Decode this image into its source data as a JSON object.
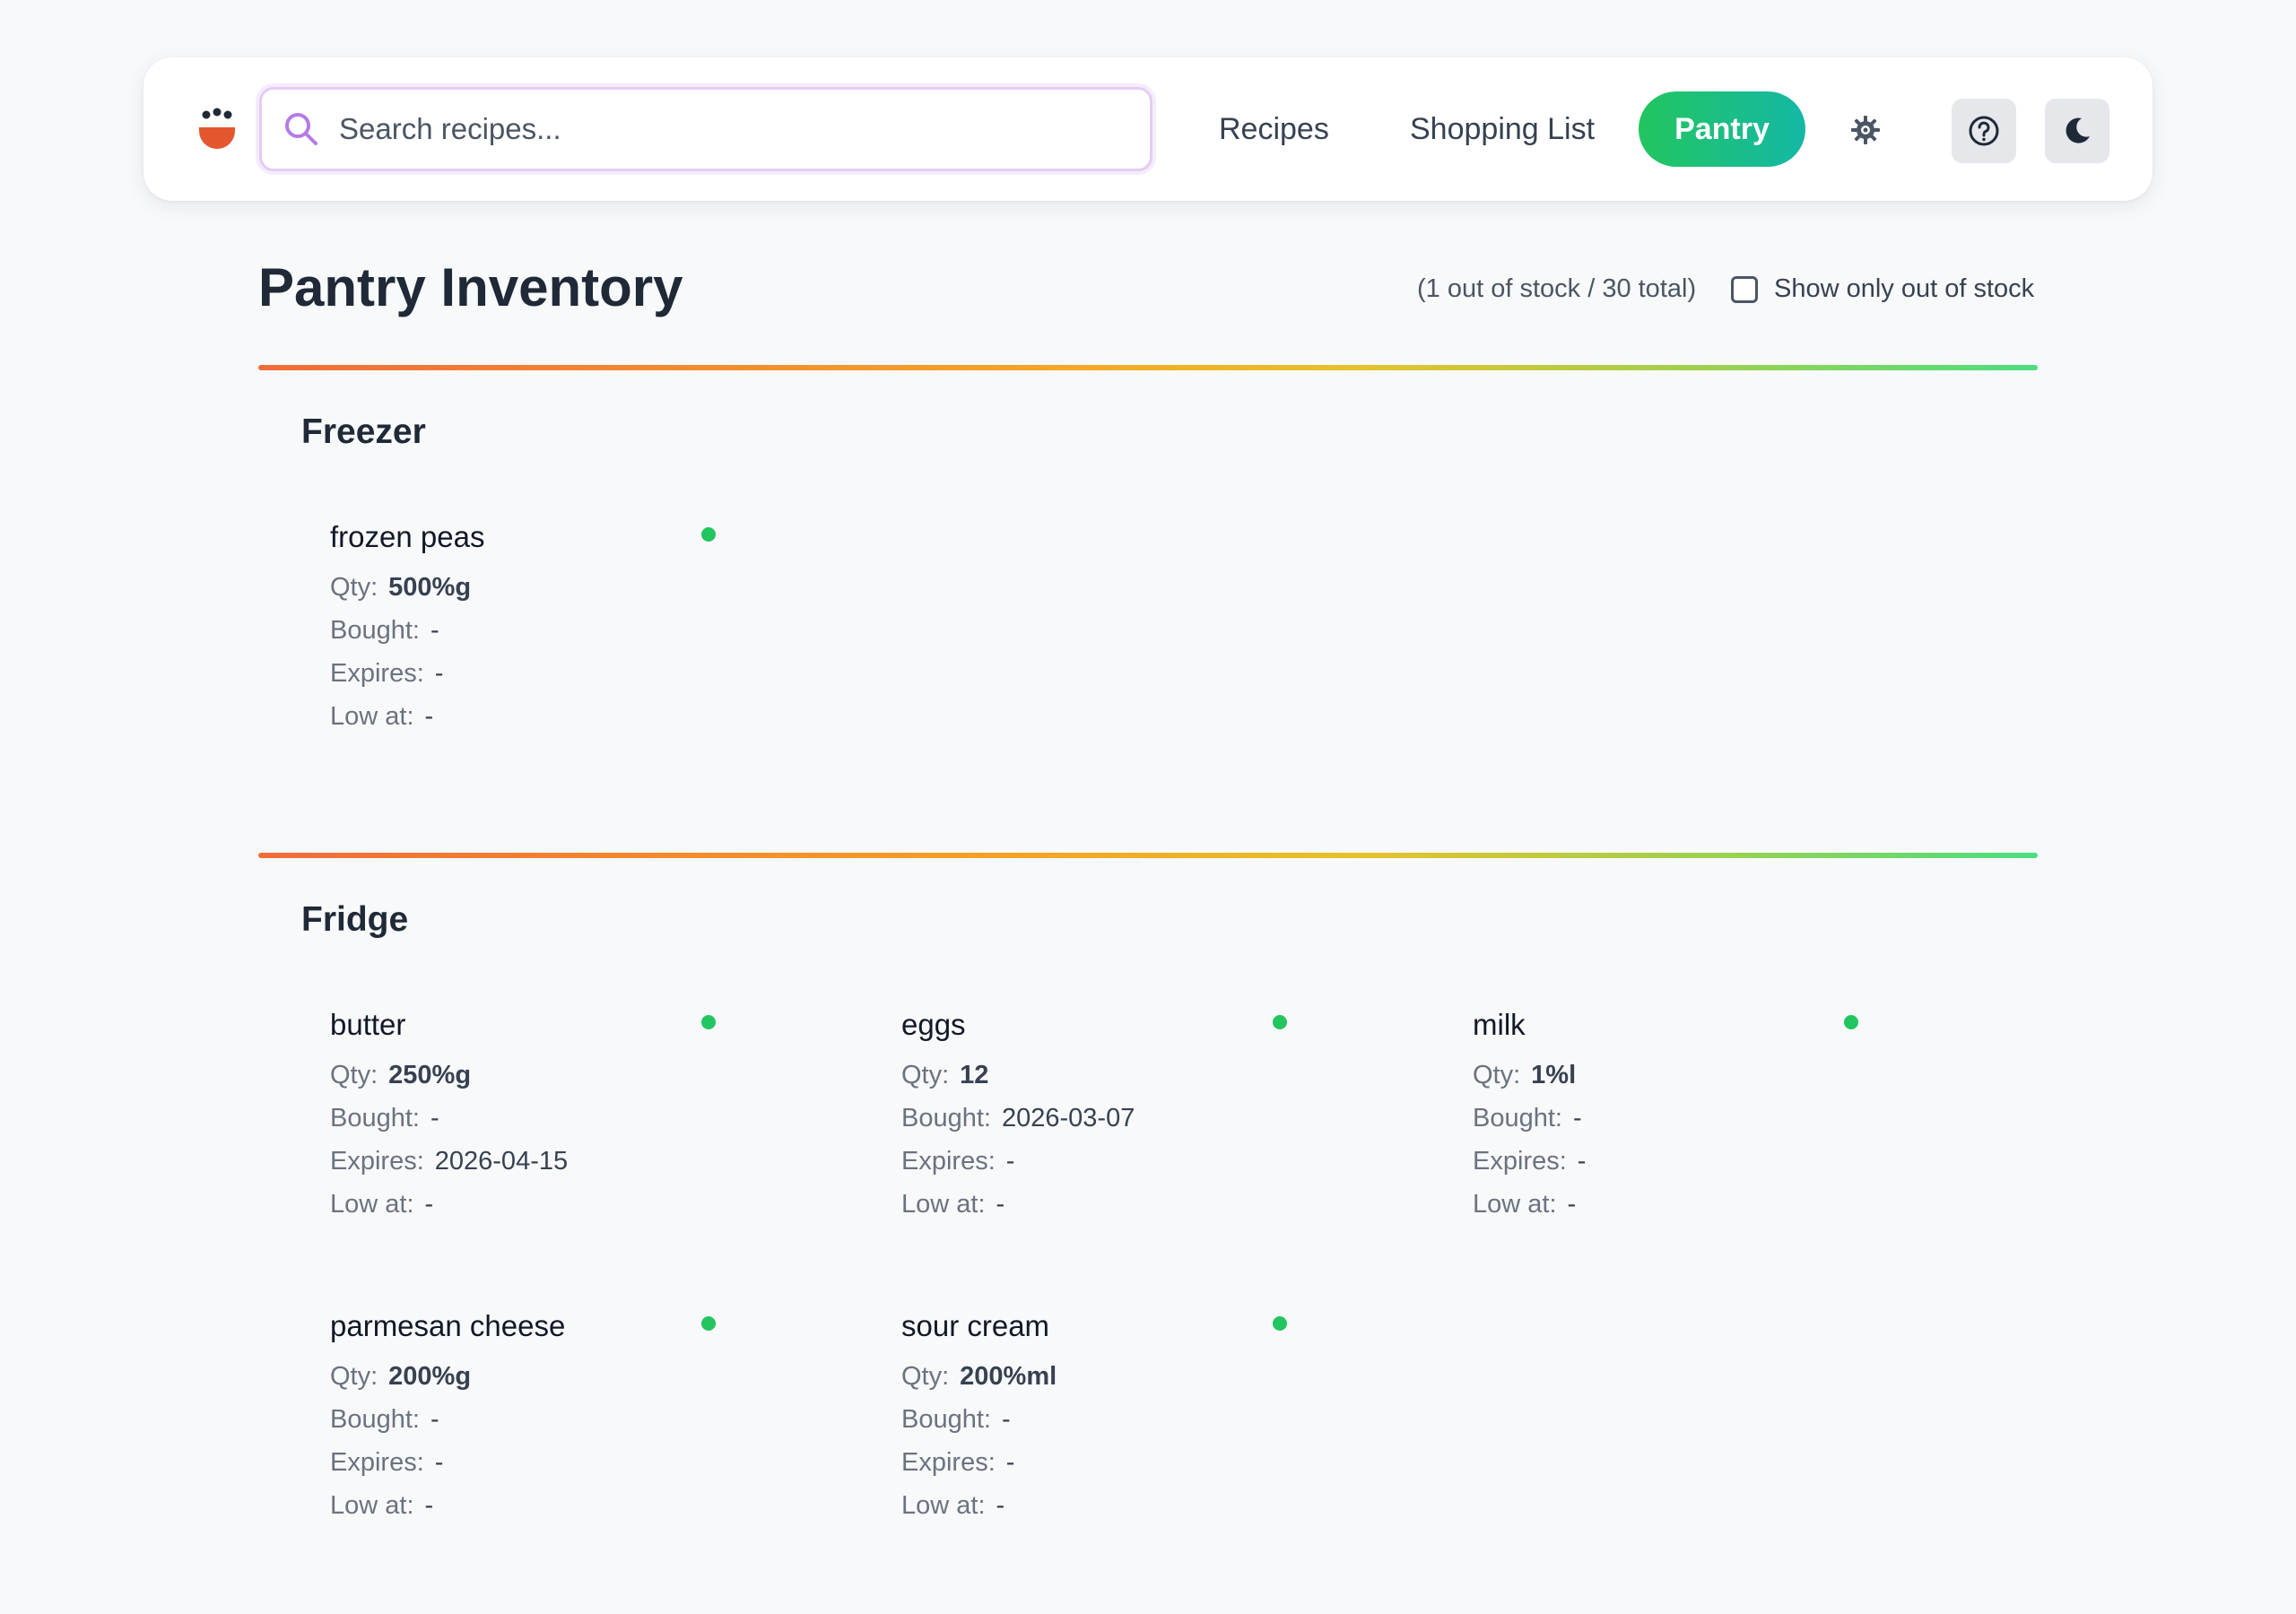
{
  "header": {
    "search": {
      "placeholder": "Search recipes...",
      "value": ""
    },
    "nav": {
      "recipes": "Recipes",
      "shopping_list": "Shopping List",
      "pantry": "Pantry"
    },
    "icons": {
      "logo": "chef-hat-logo",
      "gear": "gear-icon",
      "help": "help-circle-icon",
      "theme": "moon-icon"
    }
  },
  "main": {
    "title": "Pantry Inventory",
    "stock_summary": "(1 out of stock / 30 total)",
    "filter_label": "Show only out of stock",
    "filter_checked": false
  },
  "labels": {
    "qty": "Qty:",
    "bought": "Bought:",
    "expires": "Expires:",
    "low_at": "Low at:"
  },
  "sections": [
    {
      "title": "Freezer",
      "items": [
        {
          "name": "frozen peas",
          "qty": "500%g",
          "bought": "-",
          "expires": "-",
          "low_at": "-",
          "status": "in-stock"
        }
      ]
    },
    {
      "title": "Fridge",
      "items": [
        {
          "name": "butter",
          "qty": "250%g",
          "bought": "-",
          "expires": "2026-04-15",
          "low_at": "-",
          "status": "in-stock"
        },
        {
          "name": "eggs",
          "qty": "12",
          "bought": "2026-03-07",
          "expires": "-",
          "low_at": "-",
          "status": "in-stock"
        },
        {
          "name": "milk",
          "qty": "1%l",
          "bought": "-",
          "expires": "-",
          "low_at": "-",
          "status": "in-stock"
        },
        {
          "name": "parmesan cheese",
          "qty": "200%g",
          "bought": "-",
          "expires": "-",
          "low_at": "-",
          "status": "in-stock"
        },
        {
          "name": "sour cream",
          "qty": "200%ml",
          "bought": "-",
          "expires": "-",
          "low_at": "-",
          "status": "in-stock"
        }
      ]
    }
  ],
  "colors": {
    "accent_green": "#22c55e",
    "accent_teal": "#14b8a6",
    "status_in_stock": "#22c55e",
    "logo_orange": "#e4572e"
  }
}
